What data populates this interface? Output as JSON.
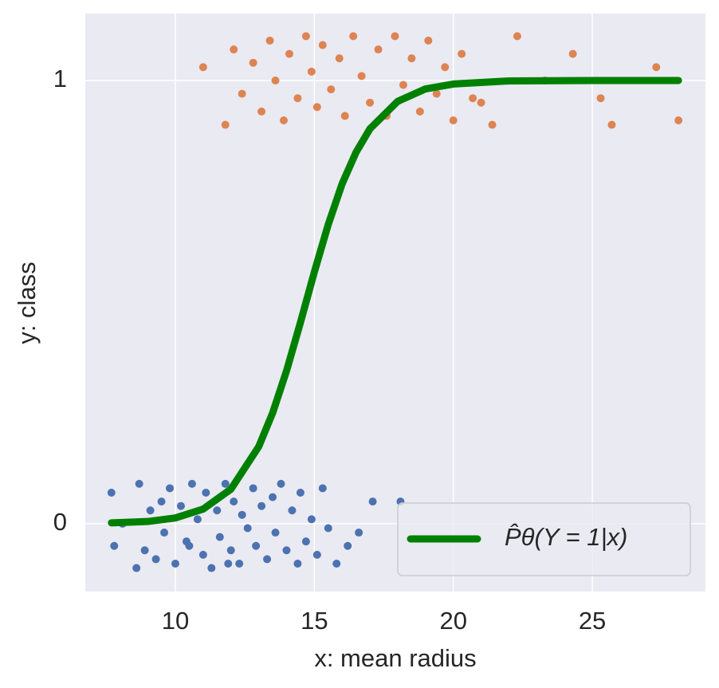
{
  "chart_data": {
    "type": "scatter",
    "xlabel": "x: mean radius",
    "ylabel": "y: class",
    "xlim": [
      6.76,
      29.07
    ],
    "ylim": [
      -0.153,
      1.151
    ],
    "xticks": [
      10,
      15,
      20,
      25
    ],
    "yticks": [
      0,
      1
    ],
    "grid": true,
    "background": "#eaeaf2",
    "legend": "lower right",
    "series": [
      {
        "type": "scatter",
        "color": "#4c72b0",
        "x": [
          7.7,
          7.8,
          8.1,
          8.6,
          8.7,
          8.9,
          9.1,
          9.3,
          9.5,
          9.6,
          9.8,
          10.0,
          10.2,
          10.4,
          10.6,
          10.8,
          11.0,
          11.1,
          11.3,
          11.5,
          11.6,
          11.8,
          12.0,
          12.1,
          12.3,
          12.4,
          12.6,
          12.8,
          12.9,
          13.1,
          13.3,
          13.5,
          13.6,
          13.8,
          14.0,
          14.2,
          14.4,
          14.5,
          14.7,
          14.9,
          15.1,
          15.3,
          15.5,
          15.8,
          16.2,
          16.6,
          17.1,
          18.1,
          10.5,
          11.9
        ],
        "values": [
          0.07,
          -0.05,
          0.0,
          -0.1,
          0.09,
          -0.06,
          0.03,
          -0.08,
          0.05,
          -0.02,
          0.08,
          -0.09,
          0.04,
          -0.04,
          0.09,
          0.01,
          -0.07,
          0.07,
          -0.1,
          0.03,
          -0.03,
          0.09,
          -0.06,
          0.05,
          -0.09,
          0.02,
          -0.01,
          0.08,
          -0.05,
          0.04,
          -0.08,
          0.06,
          -0.02,
          0.09,
          -0.06,
          0.03,
          -0.09,
          0.07,
          -0.04,
          0.01,
          -0.07,
          0.08,
          -0.01,
          -0.09,
          -0.05,
          -0.02,
          0.05,
          0.05,
          -0.05,
          -0.09
        ]
      },
      {
        "type": "scatter",
        "color": "#dd8452",
        "x": [
          11.0,
          11.8,
          12.1,
          12.4,
          12.8,
          13.1,
          13.4,
          13.6,
          13.9,
          14.1,
          14.4,
          14.7,
          14.9,
          15.1,
          15.3,
          15.6,
          15.9,
          16.1,
          16.4,
          16.7,
          17.0,
          17.3,
          17.6,
          17.9,
          18.2,
          18.5,
          18.8,
          19.1,
          19.4,
          19.7,
          20.0,
          20.3,
          20.7,
          21.0,
          21.4,
          22.3,
          23.3,
          24.3,
          25.3,
          25.7,
          27.3,
          28.1
        ],
        "values": [
          1.03,
          0.9,
          1.07,
          0.97,
          1.04,
          0.93,
          1.09,
          1.0,
          0.91,
          1.06,
          0.96,
          1.1,
          1.02,
          0.94,
          1.08,
          0.98,
          1.05,
          0.92,
          1.1,
          1.01,
          0.95,
          1.07,
          0.92,
          1.1,
          0.99,
          1.05,
          0.93,
          1.09,
          0.97,
          1.03,
          0.91,
          1.06,
          0.96,
          0.95,
          0.9,
          1.1,
          1.0,
          1.06,
          0.96,
          0.9,
          1.03,
          0.91
        ]
      },
      {
        "type": "line",
        "name": "P̂θ(Y = 1|x)",
        "color": "#008000",
        "x": [
          7.7,
          9,
          10,
          11,
          12,
          13,
          13.5,
          14,
          14.5,
          15,
          15.5,
          16,
          16.5,
          17,
          18,
          19,
          20,
          22,
          25,
          28.1
        ],
        "values": [
          0.002,
          0.005,
          0.013,
          0.033,
          0.078,
          0.174,
          0.25,
          0.345,
          0.454,
          0.568,
          0.675,
          0.767,
          0.838,
          0.891,
          0.953,
          0.981,
          0.992,
          0.999,
          1.0,
          1.0
        ]
      }
    ]
  }
}
